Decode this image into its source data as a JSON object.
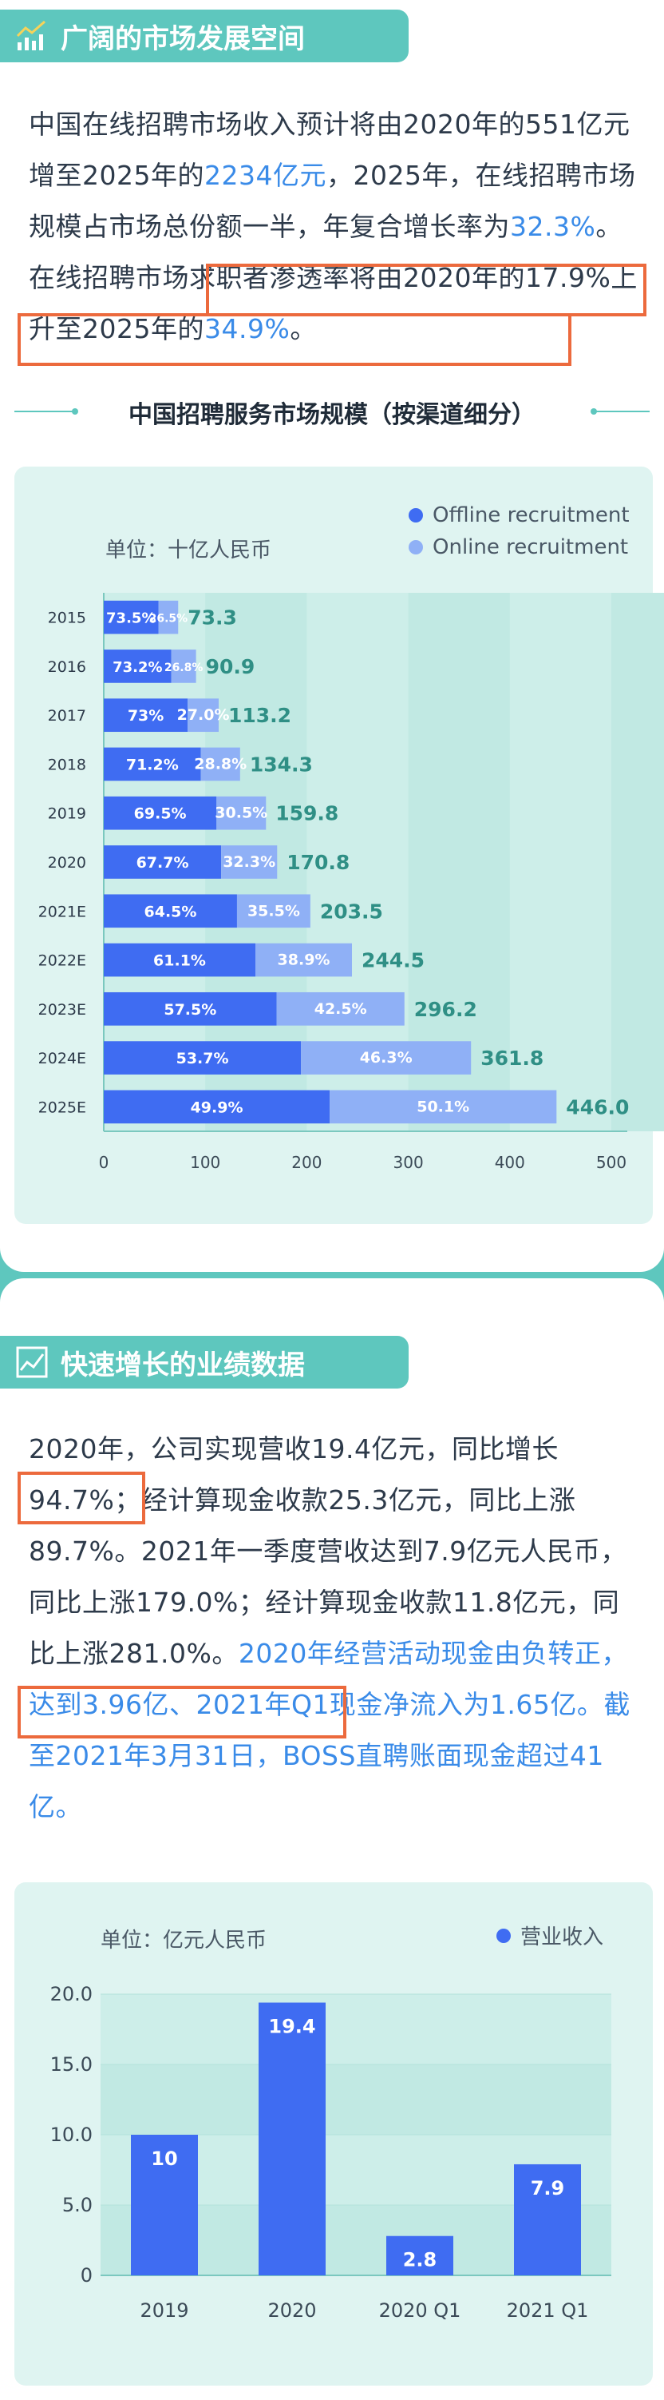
{
  "colors": {
    "teal": "#5ec7be",
    "offline": "#3f6cf2",
    "online": "#8fb0f6",
    "highlight": "#3a8be8",
    "box": "#ec6a3d",
    "total": "#2f8f85"
  },
  "section1": {
    "title": "广阔的市场发展空间",
    "icon": "chart-trend-icon",
    "para": {
      "t1": "中国在线招聘市场收入预计将由2020年的551亿元增至2025年的",
      "h1": "2234亿元",
      "t2": "，2025年，在线招聘市场规模占市场总份额一半，年复合增长率为",
      "h2": "32.3%",
      "t3": "。",
      "t4": "在线招聘市场求职者渗透率将由2020年的17.9%上升至2025年的",
      "h3": "34.9%",
      "t5": "。"
    },
    "chart_title": "中国招聘服务市场规模（按渠道细分）"
  },
  "chart1_labels": {
    "unit": "单位：十亿人民币",
    "legend": [
      "Offline recruitment",
      "Online recruitment"
    ]
  },
  "section2": {
    "title": "快速增长的业绩数据",
    "icon": "chart-line-icon",
    "para": {
      "t1": "2020年，公司实现营收19.4亿元，同比增长",
      "b1": "94.7%；",
      "t2": "经计算现金收款25.3亿元，同比上涨89.7%。2021年一季度营收达到7.9亿元人民币，同比上涨179.0%；经计算现金收款11.8亿元，同比上涨281.0%。",
      "h1": "2020年经营活动现金",
      "h2": "由负转正，达到3.96亿",
      "h3": "、2021年Q1现金净流入为1.65亿。截至2021年3月31日，BOSS直聘账面现金超过41亿。"
    }
  },
  "chart2_labels": {
    "unit": "单位：亿元人民币",
    "legend": [
      "营业收入"
    ]
  },
  "chart_data": [
    {
      "type": "bar",
      "orientation": "horizontal",
      "stacked": true,
      "title": "中国招聘服务市场规模（按渠道细分）",
      "unit": "十亿人民币",
      "categories": [
        "2015",
        "2016",
        "2017",
        "2018",
        "2019",
        "2020",
        "2021E",
        "2022E",
        "2023E",
        "2024E",
        "2025E"
      ],
      "totals": [
        73.3,
        90.9,
        113.2,
        134.3,
        159.8,
        170.8,
        203.5,
        244.5,
        296.2,
        361.8,
        446.0
      ],
      "total_labels": [
        "73.3",
        "90.9",
        "113.2",
        "134.3",
        "159.8",
        "170.8",
        "203.5",
        "244.5",
        "296.2",
        "361.8",
        "446.0"
      ],
      "series": [
        {
          "name": "Offline recruitment",
          "share_labels": [
            "73.5%",
            "73.2%",
            "73%",
            "71.2%",
            "69.5%",
            "67.7%",
            "64.5%",
            "61.1%",
            "57.5%",
            "53.7%",
            "49.9%"
          ],
          "shares": [
            73.5,
            73.2,
            73,
            71.2,
            69.5,
            67.7,
            64.5,
            61.1,
            57.5,
            53.7,
            49.9
          ]
        },
        {
          "name": "Online recruitment",
          "share_labels": [
            "26.5%",
            "26.8%",
            "27.0%",
            "28.8%",
            "30.5%",
            "32.3%",
            "35.5%",
            "38.9%",
            "42.5%",
            "46.3%",
            "50.1%"
          ],
          "shares": [
            26.5,
            26.8,
            27.0,
            28.8,
            30.5,
            32.3,
            35.5,
            38.9,
            42.5,
            46.3,
            50.1
          ]
        }
      ],
      "xlim": [
        0,
        500
      ],
      "xticks": [
        "0",
        "100",
        "200",
        "300",
        "400",
        "500"
      ],
      "legend_position": "top-right"
    },
    {
      "type": "bar",
      "title": "",
      "unit": "亿元人民币",
      "categories": [
        "2019",
        "2020",
        "2020 Q1",
        "2021 Q1"
      ],
      "series": [
        {
          "name": "营业收入",
          "values": [
            10,
            19.4,
            2.8,
            7.9
          ],
          "value_labels": [
            "10",
            "19.4",
            "2.8",
            "7.9"
          ]
        }
      ],
      "ylim": [
        0,
        20
      ],
      "yticks": [
        "0",
        "5.0",
        "10.0",
        "15.0",
        "20.0"
      ],
      "legend_position": "top-right"
    }
  ]
}
